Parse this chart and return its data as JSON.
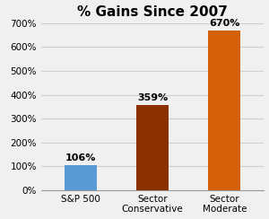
{
  "title": "% Gains Since 2007",
  "categories": [
    "S&P 500",
    "Sector\nConservative",
    "Sector\nModerate"
  ],
  "values": [
    106,
    359,
    670
  ],
  "bar_colors": [
    "#5b9bd5",
    "#8b3000",
    "#d4600a"
  ],
  "bar_labels": [
    "106%",
    "359%",
    "670%"
  ],
  "ylim": [
    0,
    700
  ],
  "yticks": [
    0,
    100,
    200,
    300,
    400,
    500,
    600,
    700
  ],
  "ytick_labels": [
    "0%",
    "100%",
    "200%",
    "300%",
    "400%",
    "500%",
    "600%",
    "700%"
  ],
  "title_fontsize": 11,
  "label_fontsize": 7.5,
  "bar_label_fontsize": 8,
  "background_color": "#f0f0f0",
  "plot_bg_color": "#f0f0f0",
  "grid_color": "#d0d0d0",
  "figsize": [
    3.0,
    2.44
  ],
  "dpi": 100
}
